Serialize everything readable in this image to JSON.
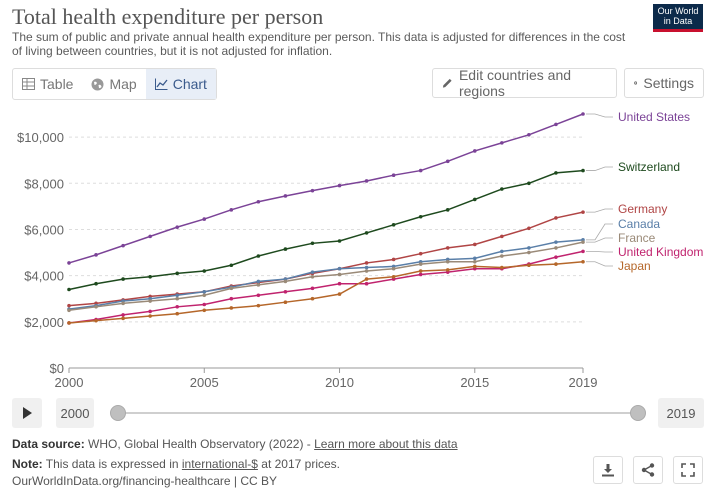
{
  "header": {
    "title": "Total health expenditure per person",
    "subtitle": "The sum of public and private annual health expenditure per person. This data is adjusted for differences in the cost of living between countries, but it is not adjusted for inflation.",
    "logo_line1": "Our World",
    "logo_line2": "in Data"
  },
  "tabs": [
    {
      "label": "Table",
      "icon": "table-icon"
    },
    {
      "label": "Map",
      "icon": "globe-icon"
    },
    {
      "label": "Chart",
      "icon": "line-chart-icon",
      "active": true
    }
  ],
  "controls": {
    "edit_label": "Edit countries and regions",
    "settings_label": "Settings"
  },
  "colors": {
    "accent": "#3a5a8c",
    "grid": "#dddddd",
    "brand": "#0c2a4a"
  },
  "chart_data": {
    "type": "line",
    "title": "Total health expenditure per person",
    "x": [
      2000,
      2001,
      2002,
      2003,
      2004,
      2005,
      2006,
      2007,
      2008,
      2009,
      2010,
      2011,
      2012,
      2013,
      2014,
      2015,
      2016,
      2017,
      2018,
      2019
    ],
    "xlim": [
      2000,
      2019
    ],
    "ylim": [
      0,
      11000
    ],
    "x_ticks": [
      2000,
      2005,
      2010,
      2015,
      2019
    ],
    "y_ticks": [
      0,
      2000,
      4000,
      6000,
      8000,
      10000
    ],
    "y_tick_labels": [
      "$0",
      "$2,000",
      "$4,000",
      "$6,000",
      "$8,000",
      "$10,000"
    ],
    "grid": "horizontal dashed",
    "legend": "inline right",
    "series": [
      {
        "name": "United States",
        "color": "#7b4397",
        "values": [
          4550,
          4900,
          5300,
          5700,
          6100,
          6450,
          6850,
          7200,
          7450,
          7680,
          7900,
          8100,
          8350,
          8550,
          8950,
          9400,
          9750,
          10100,
          10550,
          11000
        ]
      },
      {
        "name": "Switzerland",
        "color": "#1e4a1e",
        "values": [
          3400,
          3650,
          3850,
          3950,
          4100,
          4200,
          4450,
          4850,
          5150,
          5400,
          5500,
          5850,
          6200,
          6550,
          6850,
          7300,
          7750,
          8000,
          8450,
          8550
        ]
      },
      {
        "name": "Germany",
        "color": "#b04545",
        "values": [
          2700,
          2800,
          2950,
          3100,
          3200,
          3300,
          3550,
          3700,
          3850,
          4100,
          4300,
          4550,
          4700,
          4950,
          5200,
          5350,
          5700,
          6050,
          6500,
          6750
        ]
      },
      {
        "name": "Canada",
        "color": "#5a7fa8",
        "values": [
          2550,
          2700,
          2900,
          3000,
          3150,
          3300,
          3500,
          3750,
          3850,
          4150,
          4300,
          4350,
          4400,
          4600,
          4700,
          4750,
          5050,
          5200,
          5450,
          5550
        ]
      },
      {
        "name": "France",
        "color": "#9a8a78",
        "values": [
          2500,
          2650,
          2800,
          2900,
          3000,
          3150,
          3450,
          3600,
          3750,
          3950,
          4050,
          4200,
          4300,
          4500,
          4600,
          4600,
          4850,
          5000,
          5200,
          5450
        ]
      },
      {
        "name": "United Kingdom",
        "color": "#c0236e",
        "values": [
          1950,
          2100,
          2300,
          2450,
          2650,
          2750,
          3000,
          3150,
          3300,
          3450,
          3650,
          3650,
          3850,
          4050,
          4150,
          4300,
          4300,
          4500,
          4800,
          5050
        ]
      },
      {
        "name": "Japan",
        "color": "#b5672a",
        "values": [
          1950,
          2050,
          2150,
          2250,
          2350,
          2500,
          2600,
          2700,
          2850,
          3000,
          3200,
          3850,
          3950,
          4200,
          4250,
          4400,
          4350,
          4450,
          4500,
          4600
        ]
      }
    ]
  },
  "timeline": {
    "start_year": "2000",
    "end_year": "2019"
  },
  "footer": {
    "source_label": "Data source:",
    "source_text": "WHO, Global Health Observatory (2022) - ",
    "source_link": "Learn more about this data",
    "note_label": "Note:",
    "note_text_1": "This data is expressed in ",
    "note_link": "international-$",
    "note_text_2": " at 2017 prices.",
    "url_text": "OurWorldInData.org/financing-healthcare | CC BY"
  }
}
